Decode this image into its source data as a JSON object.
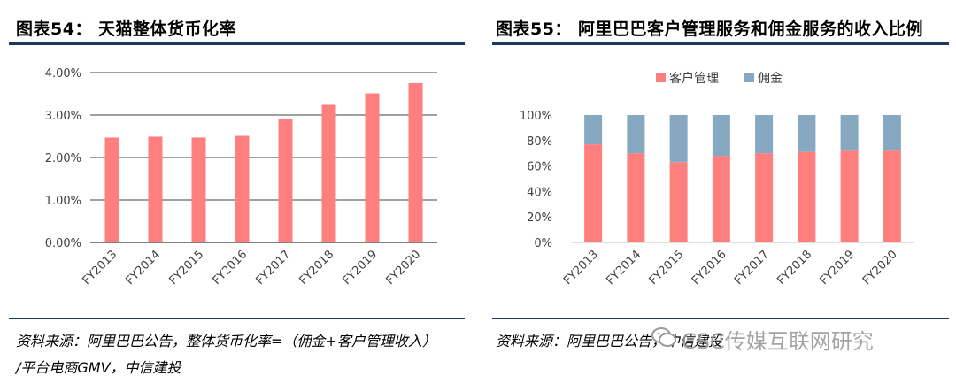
{
  "titles": {
    "left": "图表54： 天猫整体货币化率",
    "right": "图表55： 阿里巴巴客户管理服务和佣金服务的收入比例"
  },
  "sources": {
    "left_line1": "资料来源：阿里巴巴公告，整体货币化率=（佣金+客户管理收入）",
    "left_line2": "/平台电商GMV，中信建投",
    "right": "资料来源：阿里巴巴公告，中信建投"
  },
  "watermark": "CSC传媒互联网研究",
  "colors": {
    "bar": "#ff7f7f",
    "customer": "#ff7f7f",
    "commission": "#86a8c0",
    "rule": "#1b3a5c",
    "grid": "#000000"
  },
  "chart_data": [
    {
      "type": "bar",
      "title": "天猫整体货币化率",
      "categories": [
        "FY2013",
        "FY2014",
        "FY2015",
        "FY2016",
        "FY2017",
        "FY2018",
        "FY2019",
        "FY2020"
      ],
      "values": [
        2.47,
        2.49,
        2.47,
        2.51,
        2.9,
        3.24,
        3.51,
        3.75
      ],
      "unit": "%",
      "ylim": [
        0,
        4
      ],
      "yticks": [
        "0.00%",
        "1.00%",
        "2.00%",
        "3.00%",
        "4.00%"
      ],
      "grid": true
    },
    {
      "type": "bar",
      "stacked": true,
      "title": "阿里巴巴客户管理服务和佣金服务的收入比例",
      "categories": [
        "FY2013",
        "FY2014",
        "FY2015",
        "FY2016",
        "FY2017",
        "FY2018",
        "FY2019",
        "FY2020"
      ],
      "series": [
        {
          "name": "客户管理",
          "values": [
            77,
            70,
            63,
            68,
            70,
            71,
            72,
            72
          ]
        },
        {
          "name": "佣金",
          "values": [
            23,
            30,
            37,
            32,
            30,
            29,
            28,
            28
          ]
        }
      ],
      "ylim": [
        0,
        100
      ],
      "yticks": [
        "0%",
        "20%",
        "40%",
        "60%",
        "80%",
        "100%"
      ],
      "legend": "top",
      "grid": false
    }
  ]
}
